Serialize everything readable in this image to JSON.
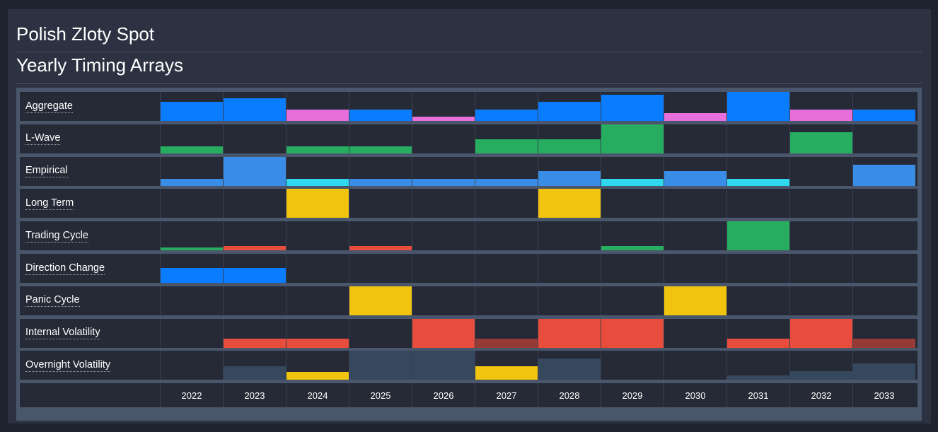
{
  "page": {
    "title": "Polish Zloty Spot",
    "subtitle": "Yearly Timing Arrays"
  },
  "chart_data": {
    "type": "heatmap",
    "x": [
      "2022",
      "2023",
      "2024",
      "2025",
      "2026",
      "2027",
      "2028",
      "2029",
      "2030",
      "2031",
      "2032",
      "2033"
    ],
    "colors": {
      "blue": "#0a7cff",
      "pink": "#e76fdc",
      "green": "#26ad5f",
      "lightblue": "#3a8de6",
      "cyan": "#2fd8ee",
      "yellow": "#f1c40f",
      "red": "#e74c3c",
      "darkred": "#963a36",
      "slate": "#36485e"
    },
    "rows": [
      {
        "label": "Aggregate",
        "values": [
          0.65,
          0.78,
          0.4,
          0.4,
          0.14,
          0.4,
          0.65,
          0.9,
          0.26,
          1.0,
          0.4,
          0.4
        ],
        "colors": [
          "blue",
          "blue",
          "pink",
          "blue",
          "pink",
          "blue",
          "blue",
          "blue",
          "pink",
          "blue",
          "pink",
          "blue"
        ]
      },
      {
        "label": "L-Wave",
        "values": [
          0.24,
          0,
          0.24,
          0.24,
          0,
          0.48,
          0.48,
          1.0,
          0,
          0,
          0.74,
          0
        ],
        "colors": [
          "green",
          "green",
          "green",
          "green",
          "green",
          "green",
          "green",
          "green",
          "green",
          "green",
          "green",
          "green"
        ]
      },
      {
        "label": "Empirical",
        "values": [
          0.24,
          1.0,
          0.24,
          0.24,
          0.24,
          0.24,
          0.5,
          0.24,
          0.5,
          0.24,
          0,
          0.74
        ],
        "colors": [
          "lightblue",
          "lightblue",
          "cyan",
          "lightblue",
          "lightblue",
          "lightblue",
          "lightblue",
          "cyan",
          "lightblue",
          "cyan",
          "lightblue",
          "lightblue"
        ]
      },
      {
        "label": "Long Term",
        "values": [
          0,
          0,
          1.0,
          0,
          0,
          0,
          1.0,
          0,
          0,
          0,
          0,
          0
        ],
        "colors": [
          "yellow",
          "yellow",
          "yellow",
          "yellow",
          "yellow",
          "yellow",
          "yellow",
          "yellow",
          "yellow",
          "yellow",
          "yellow",
          "yellow"
        ]
      },
      {
        "label": "Trading Cycle",
        "values": [
          0.1,
          0.14,
          0,
          0.14,
          0,
          0,
          0,
          0.14,
          0,
          1.0,
          0,
          0
        ],
        "colors": [
          "green",
          "red",
          "green",
          "red",
          "green",
          "green",
          "green",
          "green",
          "green",
          "green",
          "green",
          "green"
        ]
      },
      {
        "label": "Direction Change",
        "values": [
          0.5,
          0.5,
          0,
          0,
          0,
          0,
          0,
          0,
          0,
          0,
          0,
          0
        ],
        "colors": [
          "blue",
          "blue",
          "blue",
          "blue",
          "blue",
          "blue",
          "blue",
          "blue",
          "blue",
          "blue",
          "blue",
          "blue"
        ]
      },
      {
        "label": "Panic Cycle",
        "values": [
          0,
          0,
          0,
          1.0,
          0,
          0,
          0,
          0,
          1.0,
          0,
          0,
          0
        ],
        "colors": [
          "yellow",
          "yellow",
          "yellow",
          "yellow",
          "yellow",
          "yellow",
          "yellow",
          "yellow",
          "yellow",
          "yellow",
          "yellow",
          "yellow"
        ]
      },
      {
        "label": "Internal Volatility",
        "values": [
          0,
          0.32,
          0.32,
          0,
          1.0,
          0.32,
          1.0,
          1.0,
          0,
          0.32,
          1.0,
          0.32
        ],
        "colors": [
          "red",
          "red",
          "red",
          "red",
          "red",
          "darkred",
          "red",
          "red",
          "red",
          "red",
          "red",
          "darkred"
        ]
      },
      {
        "label": "Overnight Volatility",
        "values": [
          0,
          0.46,
          0.28,
          1.0,
          1.0,
          0.46,
          0.72,
          0,
          0,
          0.14,
          0.3,
          0.55
        ],
        "colors": [
          "slate",
          "slate",
          "yellow",
          "slate",
          "slate",
          "yellow",
          "slate",
          "slate",
          "slate",
          "slate",
          "slate",
          "slate"
        ]
      }
    ]
  }
}
